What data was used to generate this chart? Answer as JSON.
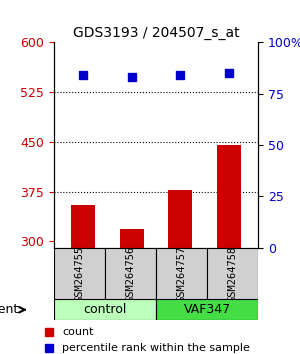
{
  "title": "GDS3193 / 204507_s_at",
  "samples": [
    "GSM264755",
    "GSM264756",
    "GSM264757",
    "GSM264758"
  ],
  "groups": [
    "control",
    "control",
    "VAF347",
    "VAF347"
  ],
  "group_colors": {
    "control": "#ccffcc",
    "VAF347": "#66ff66"
  },
  "bar_values": [
    355,
    318,
    378,
    445
  ],
  "percentile_values": [
    84,
    83,
    84,
    85
  ],
  "bar_color": "#cc0000",
  "dot_color": "#0000cc",
  "ylim_left": [
    290,
    600
  ],
  "ylim_right": [
    0,
    100
  ],
  "yticks_left": [
    300,
    375,
    450,
    525,
    600
  ],
  "yticks_right": [
    0,
    25,
    50,
    75,
    100
  ],
  "ytick_labels_right": [
    "0",
    "25",
    "50",
    "75",
    "100%"
  ],
  "hlines": [
    525,
    450,
    375
  ],
  "legend_count_label": "count",
  "legend_pct_label": "percentile rank within the sample",
  "agent_label": "agent"
}
